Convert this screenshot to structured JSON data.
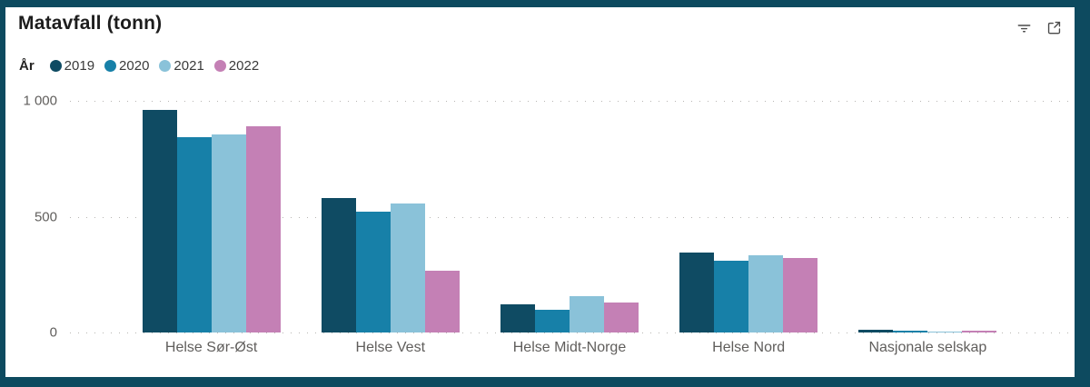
{
  "visual": {
    "header_icons": [
      {
        "name": "filter",
        "tooltip": "Filter"
      },
      {
        "name": "focus-mode",
        "tooltip": "Fokusmodus"
      }
    ]
  },
  "chart_data": {
    "type": "bar",
    "title": "Matavfall (tonn)",
    "legend_title": "År",
    "legend_position": "top",
    "grid": "dotted-horizontal",
    "ylim": [
      0,
      1000
    ],
    "y_ticks": [
      {
        "value": 1000,
        "label": "1 000"
      },
      {
        "value": 500,
        "label": "500"
      },
      {
        "value": 0,
        "label": "0"
      }
    ],
    "categories": [
      "Helse Sør-Øst",
      "Helse Vest",
      "Helse Midt-Norge",
      "Helse Nord",
      "Nasjonale selskap"
    ],
    "series": [
      {
        "name": "2019",
        "color": "#0f4b63",
        "values": [
          960,
          580,
          120,
          345,
          10
        ]
      },
      {
        "name": "2020",
        "color": "#1780a8",
        "values": [
          845,
          520,
          100,
          310,
          8
        ]
      },
      {
        "name": "2021",
        "color": "#8ac2d9",
        "values": [
          855,
          555,
          155,
          335,
          5
        ]
      },
      {
        "name": "2022",
        "color": "#c480b5",
        "values": [
          890,
          265,
          130,
          320,
          8
        ]
      }
    ],
    "colors": {
      "frame": "#0d4a5f",
      "axis_label": "#605e5c",
      "gridline": "#b8b6b3",
      "title": "#1d1d1d"
    }
  }
}
